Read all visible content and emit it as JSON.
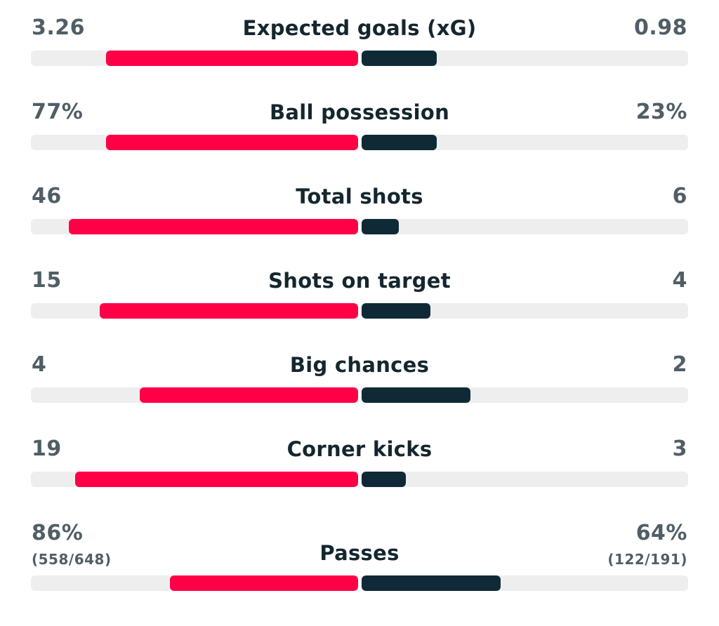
{
  "stats": [
    {
      "label": "Expected goals (xG)",
      "home": "3.26",
      "away": "0.98",
      "home_fill": 0.77,
      "away_fill": 0.23
    },
    {
      "label": "Ball possession",
      "home": "77%",
      "away": "23%",
      "home_fill": 0.77,
      "away_fill": 0.23
    },
    {
      "label": "Total shots",
      "home": "46",
      "away": "6",
      "home_fill": 0.885,
      "away_fill": 0.115
    },
    {
      "label": "Shots on target",
      "home": "15",
      "away": "4",
      "home_fill": 0.79,
      "away_fill": 0.21
    },
    {
      "label": "Big chances",
      "home": "4",
      "away": "2",
      "home_fill": 0.667,
      "away_fill": 0.333
    },
    {
      "label": "Corner kicks",
      "home": "19",
      "away": "3",
      "home_fill": 0.864,
      "away_fill": 0.136
    },
    {
      "label": "Passes",
      "home": "86%",
      "away": "64%",
      "home_detail": "(558/648)",
      "away_detail": "(122/191)",
      "home_fill": 0.575,
      "away_fill": 0.425
    }
  ],
  "colors": {
    "home": "#ff0046",
    "away": "#0f2a36",
    "track": "#eeeeee",
    "value_text": "#505e66",
    "label_text": "#14262e"
  }
}
